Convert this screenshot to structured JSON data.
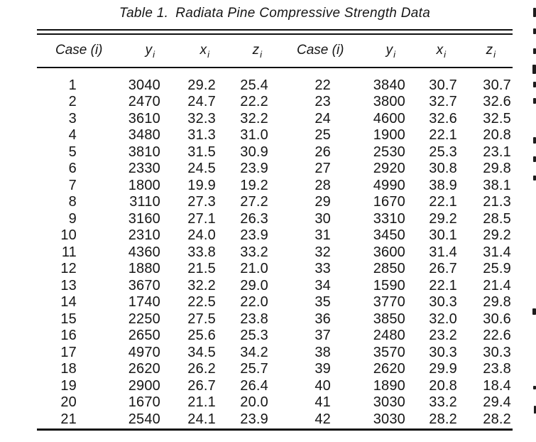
{
  "colors": {
    "background": "#ffffff",
    "text": "#161616",
    "rule": "#101010"
  },
  "table": {
    "caption_label": "Table 1.",
    "caption_text": "Radiata Pine Compressive Strength Data",
    "headers": [
      {
        "base": "Case (i)",
        "sub": ""
      },
      {
        "base": "y",
        "sub": "i"
      },
      {
        "base": "x",
        "sub": "i"
      },
      {
        "base": "z",
        "sub": "i"
      },
      {
        "base": "Case (i)",
        "sub": ""
      },
      {
        "base": "y",
        "sub": "i"
      },
      {
        "base": "x",
        "sub": "i"
      },
      {
        "base": "z",
        "sub": "i"
      }
    ],
    "column_roles": [
      "case",
      "y",
      "x",
      "z",
      "case",
      "y",
      "x",
      "z"
    ],
    "rows": [
      [
        "1",
        "3040",
        "29.2",
        "25.4",
        "22",
        "3840",
        "30.7",
        "30.7"
      ],
      [
        "2",
        "2470",
        "24.7",
        "22.2",
        "23",
        "3800",
        "32.7",
        "32.6"
      ],
      [
        "3",
        "3610",
        "32.3",
        "32.2",
        "24",
        "4600",
        "32.6",
        "32.5"
      ],
      [
        "4",
        "3480",
        "31.3",
        "31.0",
        "25",
        "1900",
        "22.1",
        "20.8"
      ],
      [
        "5",
        "3810",
        "31.5",
        "30.9",
        "26",
        "2530",
        "25.3",
        "23.1"
      ],
      [
        "6",
        "2330",
        "24.5",
        "23.9",
        "27",
        "2920",
        "30.8",
        "29.8"
      ],
      [
        "7",
        "1800",
        "19.9",
        "19.2",
        "28",
        "4990",
        "38.9",
        "38.1"
      ],
      [
        "8",
        "3110",
        "27.3",
        "27.2",
        "29",
        "1670",
        "22.1",
        "21.3"
      ],
      [
        "9",
        "3160",
        "27.1",
        "26.3",
        "30",
        "3310",
        "29.2",
        "28.5"
      ],
      [
        "10",
        "2310",
        "24.0",
        "23.9",
        "31",
        "3450",
        "30.1",
        "29.2"
      ],
      [
        "11",
        "4360",
        "33.8",
        "33.2",
        "32",
        "3600",
        "31.4",
        "31.4"
      ],
      [
        "12",
        "1880",
        "21.5",
        "21.0",
        "33",
        "2850",
        "26.7",
        "25.9"
      ],
      [
        "13",
        "3670",
        "32.2",
        "29.0",
        "34",
        "1590",
        "22.1",
        "21.4"
      ],
      [
        "14",
        "1740",
        "22.5",
        "22.0",
        "35",
        "3770",
        "30.3",
        "29.8"
      ],
      [
        "15",
        "2250",
        "27.5",
        "23.8",
        "36",
        "3850",
        "32.0",
        "30.6"
      ],
      [
        "16",
        "2650",
        "25.6",
        "25.3",
        "37",
        "2480",
        "23.2",
        "22.6"
      ],
      [
        "17",
        "4970",
        "34.5",
        "34.2",
        "38",
        "3570",
        "30.3",
        "30.3"
      ],
      [
        "18",
        "2620",
        "26.2",
        "25.7",
        "39",
        "2620",
        "29.9",
        "23.8"
      ],
      [
        "19",
        "2900",
        "26.7",
        "26.4",
        "40",
        "1890",
        "20.8",
        "18.4"
      ],
      [
        "20",
        "1670",
        "21.1",
        "20.0",
        "41",
        "3030",
        "33.2",
        "29.4"
      ],
      [
        "21",
        "2540",
        "24.1",
        "23.9",
        "42",
        "3030",
        "28.2",
        "28.2"
      ]
    ]
  }
}
